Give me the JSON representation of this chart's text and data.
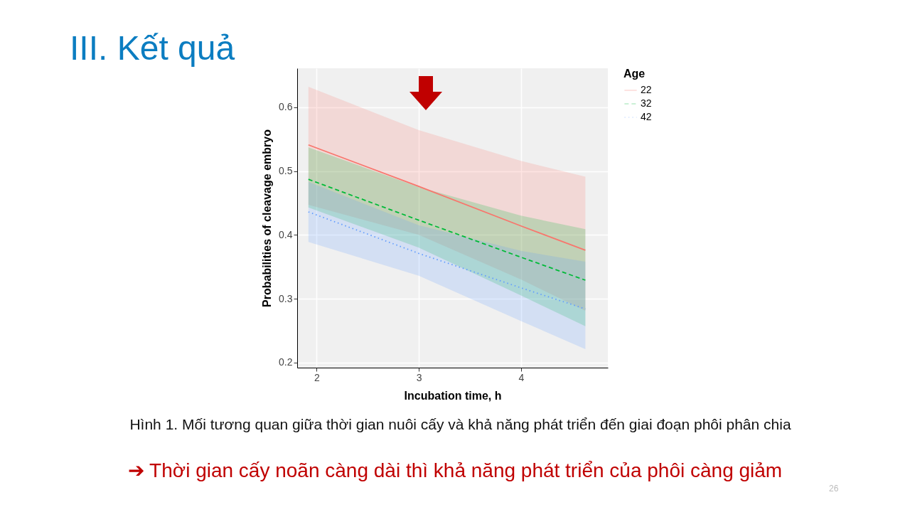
{
  "chart_data": {
    "type": "line",
    "title": "III. Kết quả",
    "xlabel": "Incubation time, h",
    "ylabel": "Probabilities of cleavage embryo",
    "legend_title": "Age",
    "x": [
      1.92,
      3,
      4,
      4.63
    ],
    "series": [
      {
        "name": "22",
        "color": "#f8766d",
        "line_style": "solid",
        "values": [
          0.541,
          0.476,
          0.414,
          0.376
        ],
        "lower": [
          0.447,
          0.4,
          0.33,
          0.281
        ],
        "upper": [
          0.632,
          0.564,
          0.516,
          0.491
        ]
      },
      {
        "name": "32",
        "color": "#00ba38",
        "line_style": "dashed",
        "values": [
          0.487,
          0.423,
          0.365,
          0.329
        ],
        "lower": [
          0.443,
          0.38,
          0.305,
          0.257
        ],
        "upper": [
          0.537,
          0.475,
          0.43,
          0.409
        ]
      },
      {
        "name": "42",
        "color": "#619cff",
        "line_style": "dotted",
        "values": [
          0.436,
          0.371,
          0.317,
          0.284
        ],
        "lower": [
          0.389,
          0.336,
          0.265,
          0.221
        ],
        "upper": [
          0.483,
          0.415,
          0.375,
          0.358
        ]
      }
    ],
    "xlim": [
      1.81,
      4.85
    ],
    "ylim": [
      0.192,
      0.661
    ],
    "xticks": [
      2,
      3,
      4
    ],
    "yticks": [
      0.2,
      0.3,
      0.4,
      0.5,
      0.6
    ],
    "grid": true,
    "legend": "right",
    "marker": "none",
    "annotations": [
      "Hình 1. Mối tương quan giữa thời gian nuôi cấy và khả năng phát triển đến giai đoạn phôi phân chia",
      "➔ Thời gian cấy noãn càng dài thì khả năng phát triển của phôi càng giảm",
      "26"
    ]
  }
}
